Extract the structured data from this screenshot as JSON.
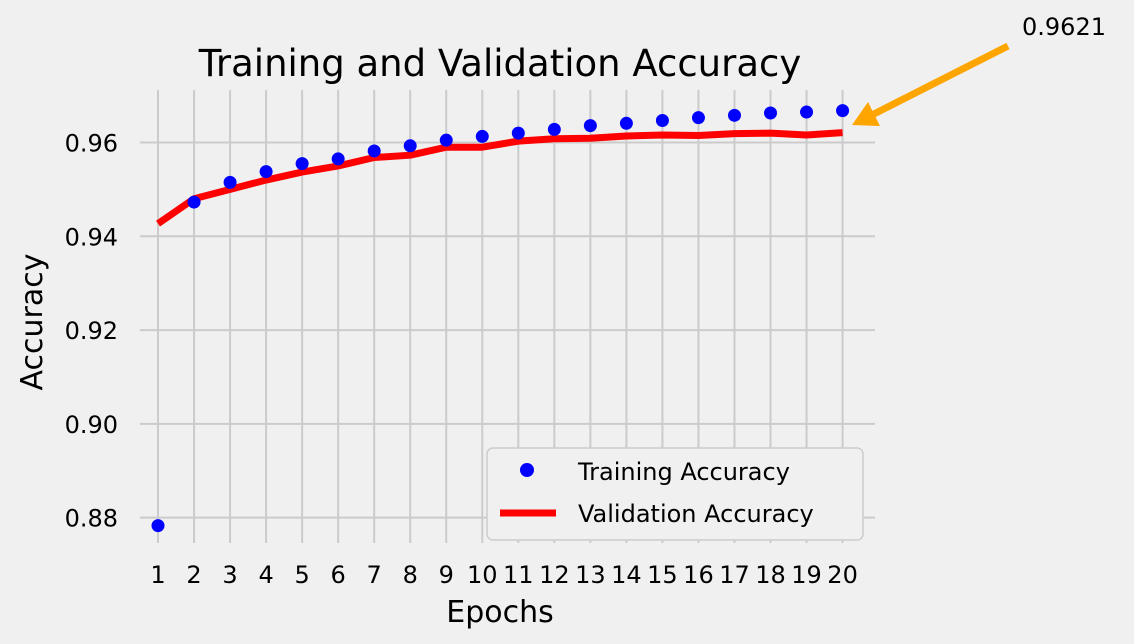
{
  "chart_data": {
    "type": "line",
    "title": "Training and Validation Accuracy",
    "xlabel": "Epochs",
    "ylabel": "Accuracy",
    "x": [
      1,
      2,
      3,
      4,
      5,
      6,
      7,
      8,
      9,
      10,
      11,
      12,
      13,
      14,
      15,
      16,
      17,
      18,
      19,
      20
    ],
    "x_tick_labels": [
      "1",
      "2",
      "3",
      "4",
      "5",
      "6",
      "7",
      "8",
      "9",
      "10",
      "11",
      "12",
      "13",
      "14",
      "15",
      "16",
      "17",
      "18",
      "19",
      "20"
    ],
    "xlim": [
      0.5,
      20.9
    ],
    "ylim": [
      0.8746,
      0.9712
    ],
    "y_ticks": [
      0.88,
      0.9,
      0.92,
      0.94,
      0.96
    ],
    "y_tick_labels": [
      "0.88",
      "0.90",
      "0.92",
      "0.94",
      "0.96"
    ],
    "grid": true,
    "legend_position": "lower-right",
    "series": [
      {
        "name": "Training Accuracy",
        "style": "markers",
        "color": "#0000ff",
        "values": [
          0.8783,
          0.9473,
          0.9515,
          0.9538,
          0.9555,
          0.9565,
          0.9582,
          0.9593,
          0.9605,
          0.9613,
          0.962,
          0.9628,
          0.9636,
          0.9641,
          0.9647,
          0.9653,
          0.9658,
          0.9663,
          0.9665,
          0.9668
        ]
      },
      {
        "name": "Validation Accuracy",
        "style": "line",
        "color": "#ff0000",
        "values": [
          0.9427,
          0.948,
          0.95,
          0.952,
          0.9537,
          0.955,
          0.9568,
          0.9573,
          0.959,
          0.959,
          0.9603,
          0.9608,
          0.9609,
          0.9614,
          0.9616,
          0.9615,
          0.9619,
          0.962,
          0.9616,
          0.9621
        ]
      }
    ],
    "annotation": {
      "text": "0.9621",
      "x": 20,
      "y": 0.9621,
      "arrow_color": "#ffa500"
    }
  }
}
